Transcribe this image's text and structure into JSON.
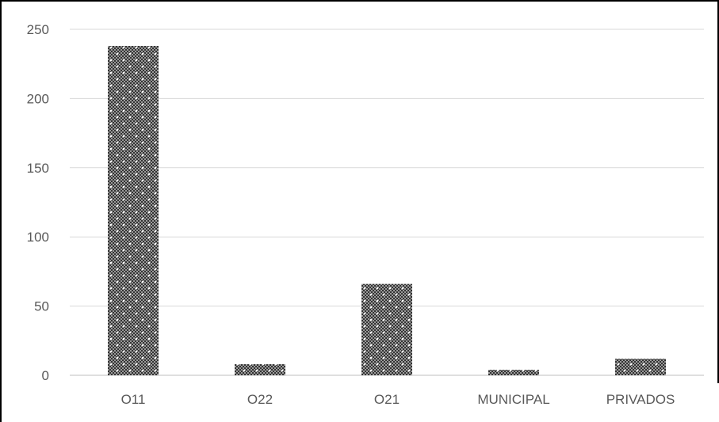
{
  "chart_data": {
    "type": "bar",
    "title": "",
    "xlabel": "",
    "ylabel": "",
    "categories": [
      "O11",
      "O22",
      "O21",
      "MUNICIPAL",
      "PRIVADOS"
    ],
    "values": [
      238,
      8,
      66,
      4,
      12
    ],
    "ylim": [
      0,
      250
    ],
    "yticks": [
      0,
      50,
      100,
      150,
      200,
      250
    ],
    "grid": true,
    "legend": "none",
    "bar_fill": "dark checkered pattern with white dots",
    "colors": {
      "bar_dark": "#3a3a3a",
      "bar_light": "#9a9a9a",
      "grid": "#d9d9d9",
      "axis": "#bfbfbf",
      "text": "#595959",
      "frame": "#000000"
    }
  }
}
